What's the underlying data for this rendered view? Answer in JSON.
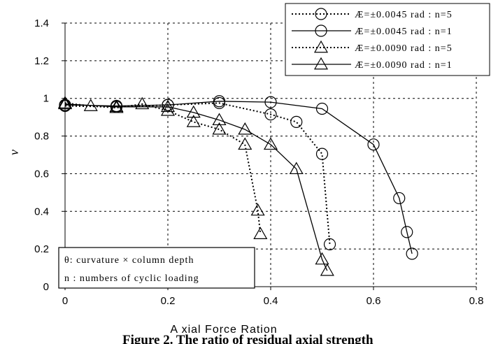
{
  "chart_data": {
    "type": "line",
    "xlabel": "A xial Force Ration",
    "ylabel": "ν",
    "xlim": [
      0,
      0.8
    ],
    "ylim": [
      0,
      1.4
    ],
    "x_ticks": [
      "0",
      "0.2",
      "0.4",
      "0.6",
      "0.8"
    ],
    "y_ticks": [
      "0",
      "0.2",
      "0.4",
      "0.6",
      "0.8",
      "1",
      "1.2",
      "1.4"
    ],
    "grid": true,
    "legend_position": "top-right",
    "series": [
      {
        "name": "Æ=±0.0045 rad : n=5",
        "line_style": "dotted",
        "marker": "circle",
        "points": [
          [
            0,
            0.96
          ],
          [
            0.1,
            0.955
          ],
          [
            0.2,
            0.965
          ],
          [
            0.3,
            0.975
          ],
          [
            0.4,
            0.915
          ],
          [
            0.45,
            0.875
          ],
          [
            0.5,
            0.705
          ],
          [
            0.515,
            0.225
          ]
        ]
      },
      {
        "name": "Æ=±0.0045 rad : n=1",
        "line_style": "solid",
        "marker": "circle",
        "points": [
          [
            0,
            0.965
          ],
          [
            0.1,
            0.96
          ],
          [
            0.2,
            0.965
          ],
          [
            0.3,
            0.985
          ],
          [
            0.4,
            0.98
          ],
          [
            0.5,
            0.945
          ],
          [
            0.6,
            0.755
          ],
          [
            0.65,
            0.47
          ],
          [
            0.665,
            0.29
          ],
          [
            0.675,
            0.175
          ]
        ]
      },
      {
        "name": "Æ=±0.0090 rad : n=5",
        "line_style": "dotted",
        "marker": "triangle",
        "points": [
          [
            0,
            0.975
          ],
          [
            0.05,
            0.96
          ],
          [
            0.1,
            0.95
          ],
          [
            0.15,
            0.97
          ],
          [
            0.2,
            0.935
          ],
          [
            0.25,
            0.875
          ],
          [
            0.3,
            0.835
          ],
          [
            0.35,
            0.755
          ],
          [
            0.375,
            0.405
          ],
          [
            0.38,
            0.28
          ]
        ]
      },
      {
        "name": "Æ=±0.0090 rad : n=1",
        "line_style": "solid",
        "marker": "triangle",
        "points": [
          [
            0,
            0.97
          ],
          [
            0.1,
            0.955
          ],
          [
            0.2,
            0.955
          ],
          [
            0.25,
            0.925
          ],
          [
            0.3,
            0.885
          ],
          [
            0.35,
            0.835
          ],
          [
            0.4,
            0.755
          ],
          [
            0.45,
            0.625
          ],
          [
            0.5,
            0.145
          ],
          [
            0.51,
            0.085
          ]
        ]
      }
    ],
    "annotation_lines": [
      "θ: curvature × column depth",
      "n : numbers of cyclic loading"
    ],
    "caption": "Figure 2. The ratio of residual axial strength"
  }
}
